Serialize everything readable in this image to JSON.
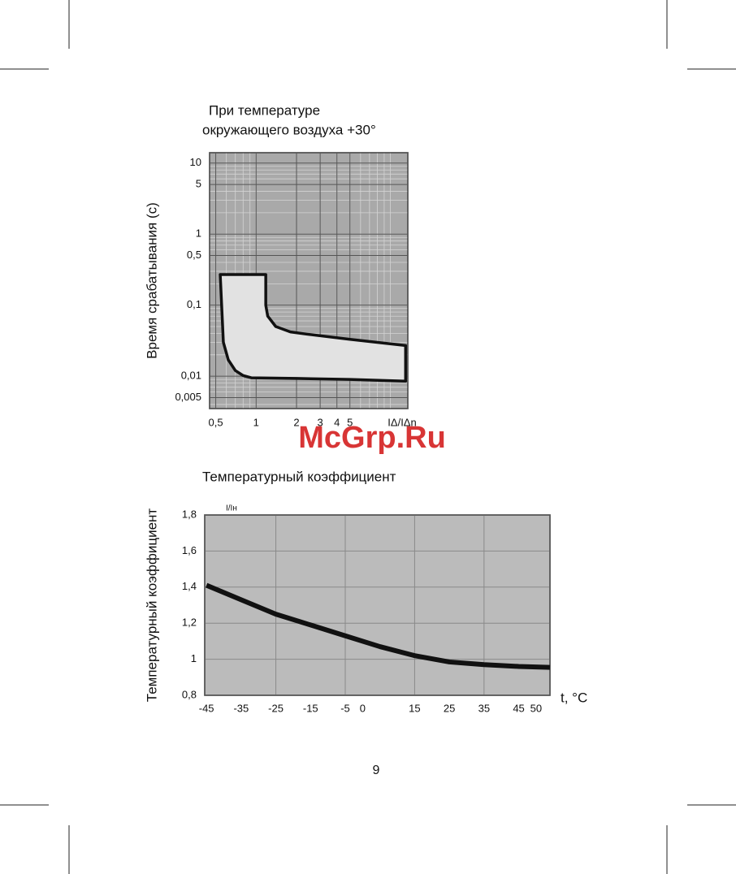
{
  "chart_data": [
    {
      "type": "line",
      "title": [
        "При температуре",
        "окружающего воздуха +30°"
      ],
      "y_label": "Время срабатывания (с)",
      "x_label": "IΔ/IΔn",
      "log_x": true,
      "log_y": true,
      "xlim": [
        0.45,
        13.5
      ],
      "ylim": [
        0.0035,
        14
      ],
      "xticks": [
        {
          "value": 0.5,
          "label": "0,5"
        },
        1,
        2,
        3,
        4,
        5
      ],
      "yticks": [
        10,
        5,
        1,
        {
          "value": 0.5,
          "label": "0,5"
        },
        {
          "value": 0.1,
          "label": "0,1"
        },
        {
          "value": 0.01,
          "label": "0,01"
        },
        {
          "value": 0.005,
          "label": "0,005"
        }
      ],
      "grid": true,
      "color": "#111111",
      "fill": "#e2e2e2",
      "series": [
        {
          "x": [
            0.54,
            1.18,
            1.18,
            1.22,
            1.4,
            1.8,
            2.4,
            5,
            13
          ],
          "values": [
            0.27,
            0.27,
            0.1,
            0.07,
            0.05,
            0.042,
            0.039,
            0.033,
            0.027
          ]
        },
        {
          "x": [
            0.54,
            0.57,
            0.62,
            0.7,
            0.8,
            0.92,
            2,
            5,
            13
          ],
          "values": [
            0.27,
            0.03,
            0.017,
            0.012,
            0.0102,
            0.0095,
            0.0093,
            0.009,
            0.0085
          ]
        }
      ]
    },
    {
      "type": "line",
      "title": "Температурный коэффициент",
      "y_label": "Температурный коэффициент",
      "y_unit": "I/Iн",
      "x_label": "t, °C",
      "xlim": [
        -45.5,
        54
      ],
      "ylim": [
        0.8,
        1.8
      ],
      "xticks": [
        -45,
        -35,
        -25,
        -15,
        -5,
        0,
        15,
        25,
        35,
        45,
        50
      ],
      "xgrid": [
        -25,
        -5,
        15,
        35
      ],
      "yticks": [
        {
          "value": 1.8,
          "label": "1,8"
        },
        {
          "value": 1.6,
          "label": "1,6"
        },
        {
          "value": 1.4,
          "label": "1,4"
        },
        {
          "value": 1.2,
          "label": "1,2"
        },
        1,
        {
          "value": 0.8,
          "label": "0,8"
        }
      ],
      "grid": true,
      "series": [
        {
          "color": "#111111",
          "x": [
            -45,
            -35,
            -25,
            -15,
            -5,
            5,
            15,
            25,
            35,
            45,
            54
          ],
          "values": [
            1.41,
            1.33,
            1.25,
            1.19,
            1.13,
            1.07,
            1.02,
            0.985,
            0.97,
            0.96,
            0.955
          ]
        }
      ]
    }
  ],
  "watermark": "McGrp.Ru",
  "page_number": "9"
}
